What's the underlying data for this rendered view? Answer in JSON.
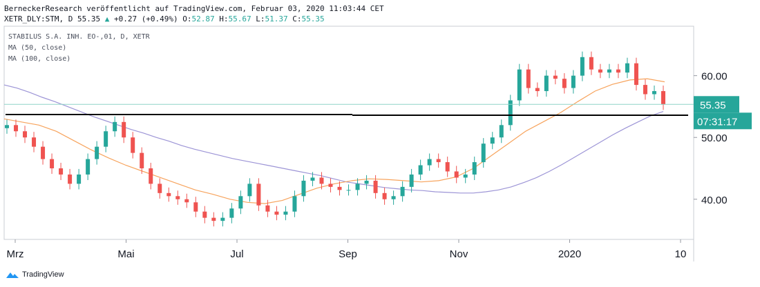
{
  "header": {
    "published": "BerneckerResearch veröffentlicht auf TradingView.com, Februar 03, 2020 11:03:44 CET",
    "symbol_line_prefix": "XETR_DLY:STM, D 55.35",
    "change_arrow": "▲",
    "change": "+0.27 (+0.49%)",
    "ohlc_o_label": "O:",
    "ohlc_o": "52.87",
    "ohlc_h_label": "H:",
    "ohlc_h": "55.67",
    "ohlc_l_label": "L:",
    "ohlc_l": "51.37",
    "ohlc_c_label": "C:",
    "ohlc_c": "55.35"
  },
  "legend": {
    "title": "STABILUS S.A. INH. EO-,01, D, XETR",
    "ma50": "MA (50, close)",
    "ma100": "MA (100, close)"
  },
  "price_badge": "55.35",
  "countdown_badge": "07:31:17",
  "brand": "TradingView",
  "colors": {
    "up": "#26a69a",
    "down": "#ef5350",
    "ma50": "#f7a35c",
    "ma100": "#9c94d6",
    "badge": "#26a69a",
    "hline": "#000000",
    "priceline": "#8fd3c7"
  },
  "chart_data": {
    "type": "candlestick",
    "x_labels": [
      "Mrz",
      "Mai",
      "Jul",
      "Sep",
      "Nov",
      "2020",
      "10"
    ],
    "y_ticks": [
      "40.00",
      "50.00",
      "60.00"
    ],
    "ylim": [
      33.5,
      68
    ],
    "last_close": 55.35,
    "support_line": 53.6,
    "series_close": [
      52.0,
      51.0,
      50.0,
      48.5,
      46.5,
      45.0,
      44.0,
      42.5,
      44.0,
      46.5,
      48.5,
      51.0,
      52.5,
      50.0,
      47.5,
      45.0,
      42.5,
      41.0,
      40.5,
      40.0,
      39.5,
      38.0,
      37.0,
      36.5,
      37.0,
      38.5,
      40.5,
      42.5,
      39.0,
      38.0,
      37.5,
      38.0,
      40.5,
      43.0,
      43.5,
      42.5,
      42.0,
      41.5,
      41.5,
      42.5,
      43.0,
      41.0,
      40.0,
      40.5,
      42.0,
      44.0,
      45.5,
      46.5,
      46.0,
      44.5,
      43.5,
      44.0,
      46.0,
      49.0,
      50.0,
      52.0,
      56.0,
      61.0,
      58.0,
      57.5,
      60.0,
      59.5,
      58.0,
      60.0,
      63.0,
      61.0,
      60.5,
      61.0,
      60.5,
      62.0,
      58.5,
      57.0,
      57.5,
      55.35
    ],
    "ma50": [
      53.0,
      52.5,
      52.0,
      51.0,
      49.5,
      48.0,
      46.7,
      45.5,
      44.5,
      43.5,
      42.5,
      41.5,
      40.8,
      40.0,
      39.5,
      39.3,
      39.8,
      40.8,
      41.8,
      42.5,
      43.0,
      43.3,
      43.2,
      43.0,
      42.8,
      43.0,
      43.6,
      45.0,
      47.0,
      49.0,
      51.0,
      52.5,
      54.0,
      55.8,
      57.5,
      58.6,
      59.3,
      59.5,
      59.0
    ],
    "ma100": [
      58.5,
      58.0,
      57.3,
      56.5,
      55.8,
      55.0,
      54.2,
      53.4,
      52.7,
      52.0,
      51.3,
      50.7,
      50.0,
      49.4,
      48.7,
      48.1,
      47.6,
      47.1,
      46.6,
      46.2,
      45.8,
      45.4,
      45.0,
      44.6,
      44.2,
      43.8,
      43.3,
      42.8,
      42.5,
      42.2,
      41.9,
      41.7,
      41.5,
      41.4,
      41.2,
      41.1,
      41.0,
      41.0,
      41.2,
      41.5,
      42.0,
      42.7,
      43.5,
      44.5,
      45.6,
      46.8,
      48.0,
      49.2,
      50.4,
      51.5,
      52.5,
      53.5,
      54.2
    ]
  }
}
